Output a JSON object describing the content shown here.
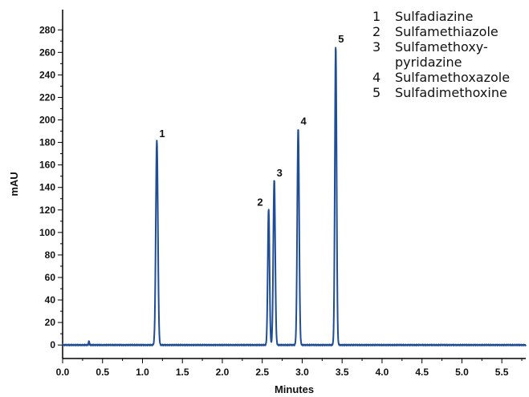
{
  "chart_data": {
    "type": "line",
    "xlabel": "Minutes",
    "ylabel": "mAU",
    "xlim": [
      0.0,
      5.8
    ],
    "ylim": [
      -12,
      298
    ],
    "x_ticks": [
      0.0,
      0.5,
      1.0,
      1.5,
      2.0,
      2.5,
      3.0,
      3.5,
      4.0,
      4.5,
      5.0,
      5.5
    ],
    "x_tick_labels": [
      "0.0",
      "0.5",
      "1.0",
      "1.5",
      "2.0",
      "2.5",
      "3.0",
      "3.5",
      "4.0",
      "4.5",
      "5.0",
      "5.5"
    ],
    "y_ticks": [
      0,
      20,
      40,
      60,
      80,
      100,
      120,
      140,
      160,
      180,
      200,
      220,
      240,
      260,
      280
    ],
    "y_tick_labels": [
      "0",
      "20",
      "40",
      "60",
      "80",
      "100",
      "120",
      "140",
      "160",
      "180",
      "200",
      "220",
      "240",
      "260",
      "280"
    ],
    "grid": false,
    "line_color": "#1f4e96",
    "baseline": 0,
    "injection_spike": {
      "x": 0.33,
      "y": 4
    },
    "peaks": [
      {
        "label": "1",
        "rt": 1.18,
        "height": 182,
        "width": 0.013
      },
      {
        "label": "2",
        "rt": 2.58,
        "height": 121,
        "width": 0.011
      },
      {
        "label": "3",
        "rt": 2.65,
        "height": 147,
        "width": 0.012
      },
      {
        "label": "4",
        "rt": 2.95,
        "height": 193,
        "width": 0.012
      },
      {
        "label": "5",
        "rt": 3.42,
        "height": 266,
        "width": 0.011
      }
    ],
    "legend_position": "top-right",
    "legend": [
      {
        "number": "1",
        "lines": [
          "Sulfadiazine"
        ]
      },
      {
        "number": "2",
        "lines": [
          "Sulfamethiazole"
        ]
      },
      {
        "number": "3",
        "lines": [
          "Sulfamethoxy-",
          "pyridazine"
        ]
      },
      {
        "number": "4",
        "lines": [
          "Sulfamethoxazole"
        ]
      },
      {
        "number": "5",
        "lines": [
          "Sulfadimethoxine"
        ]
      }
    ]
  }
}
